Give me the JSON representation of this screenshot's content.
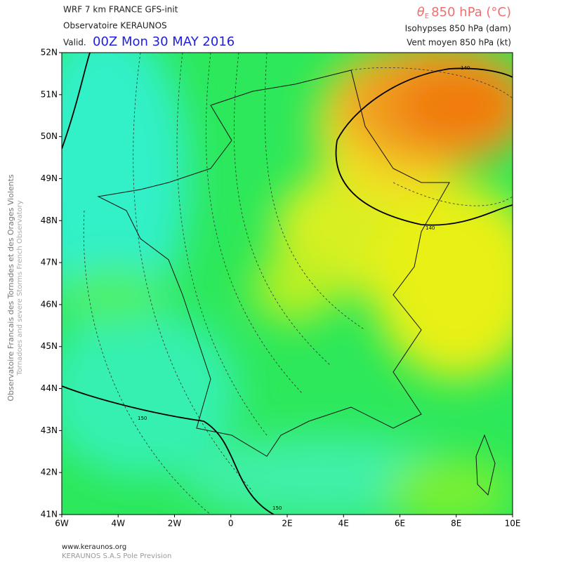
{
  "header": {
    "model": "WRF 7 km FRANCE  GFS-init",
    "observatory": "Observatoire KERAUNOS",
    "valid_prefix": "Valid.",
    "valid_time": "00Z Mon 30 MAY 2016",
    "field_symbol": "θ",
    "field_subscript": "E",
    "field_rest": "850 hPa (°C)",
    "isohypses": "Isohypses 850 hPa (dam)",
    "wind": "Vent moyen 850 hPa (kt)"
  },
  "side": {
    "line1": "Observatoire Francais des Tornades et des Orages Violents",
    "line2": "Tornadoes and severe Storms French Observatory"
  },
  "map": {
    "lat_labels": [
      "52N",
      "51N",
      "50N",
      "49N",
      "48N",
      "47N",
      "46N",
      "45N",
      "44N",
      "43N",
      "42N",
      "41N"
    ],
    "lon_labels": [
      "6W",
      "4W",
      "2W",
      "0",
      "2E",
      "4E",
      "6E",
      "8E",
      "10E"
    ],
    "contour_labels": [
      "140",
      "140",
      "150",
      "150"
    ]
  },
  "footer": {
    "site": "www.keraunos.org",
    "company": "KERAUNOS S.A.S Pole Prevision"
  }
}
